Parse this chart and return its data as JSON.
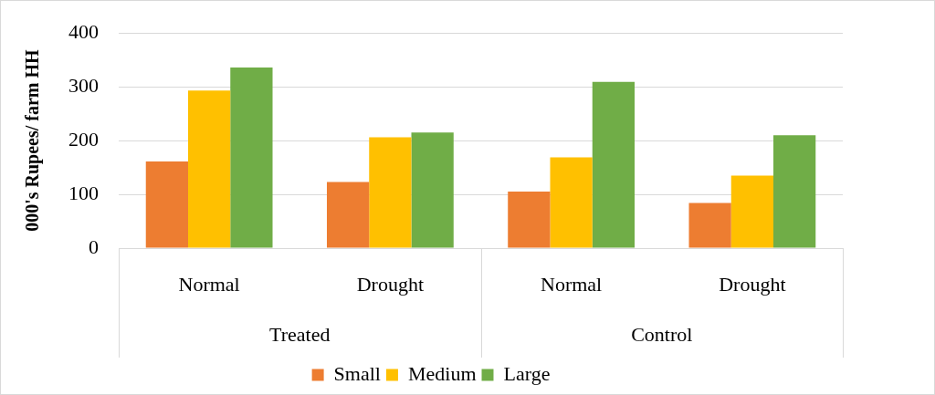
{
  "chart_data": {
    "type": "bar",
    "ylabel": "000's Rupees/ farm HH",
    "categories": [
      "Normal",
      "Drought",
      "Normal",
      "Drought"
    ],
    "annotations": [
      "Treated",
      "Control"
    ],
    "series": [
      {
        "name": "Small",
        "color": "#ed7d31",
        "values": [
          161,
          123,
          105,
          84
        ]
      },
      {
        "name": "Medium",
        "color": "#ffc000",
        "values": [
          293,
          206,
          169,
          135
        ]
      },
      {
        "name": "Large",
        "color": "#70ad47",
        "values": [
          336,
          215,
          309,
          210
        ]
      }
    ],
    "ylim": [
      0,
      400
    ],
    "yticks": [
      0,
      100,
      200,
      300,
      400
    ],
    "grid": "y",
    "legend": "bottom"
  }
}
